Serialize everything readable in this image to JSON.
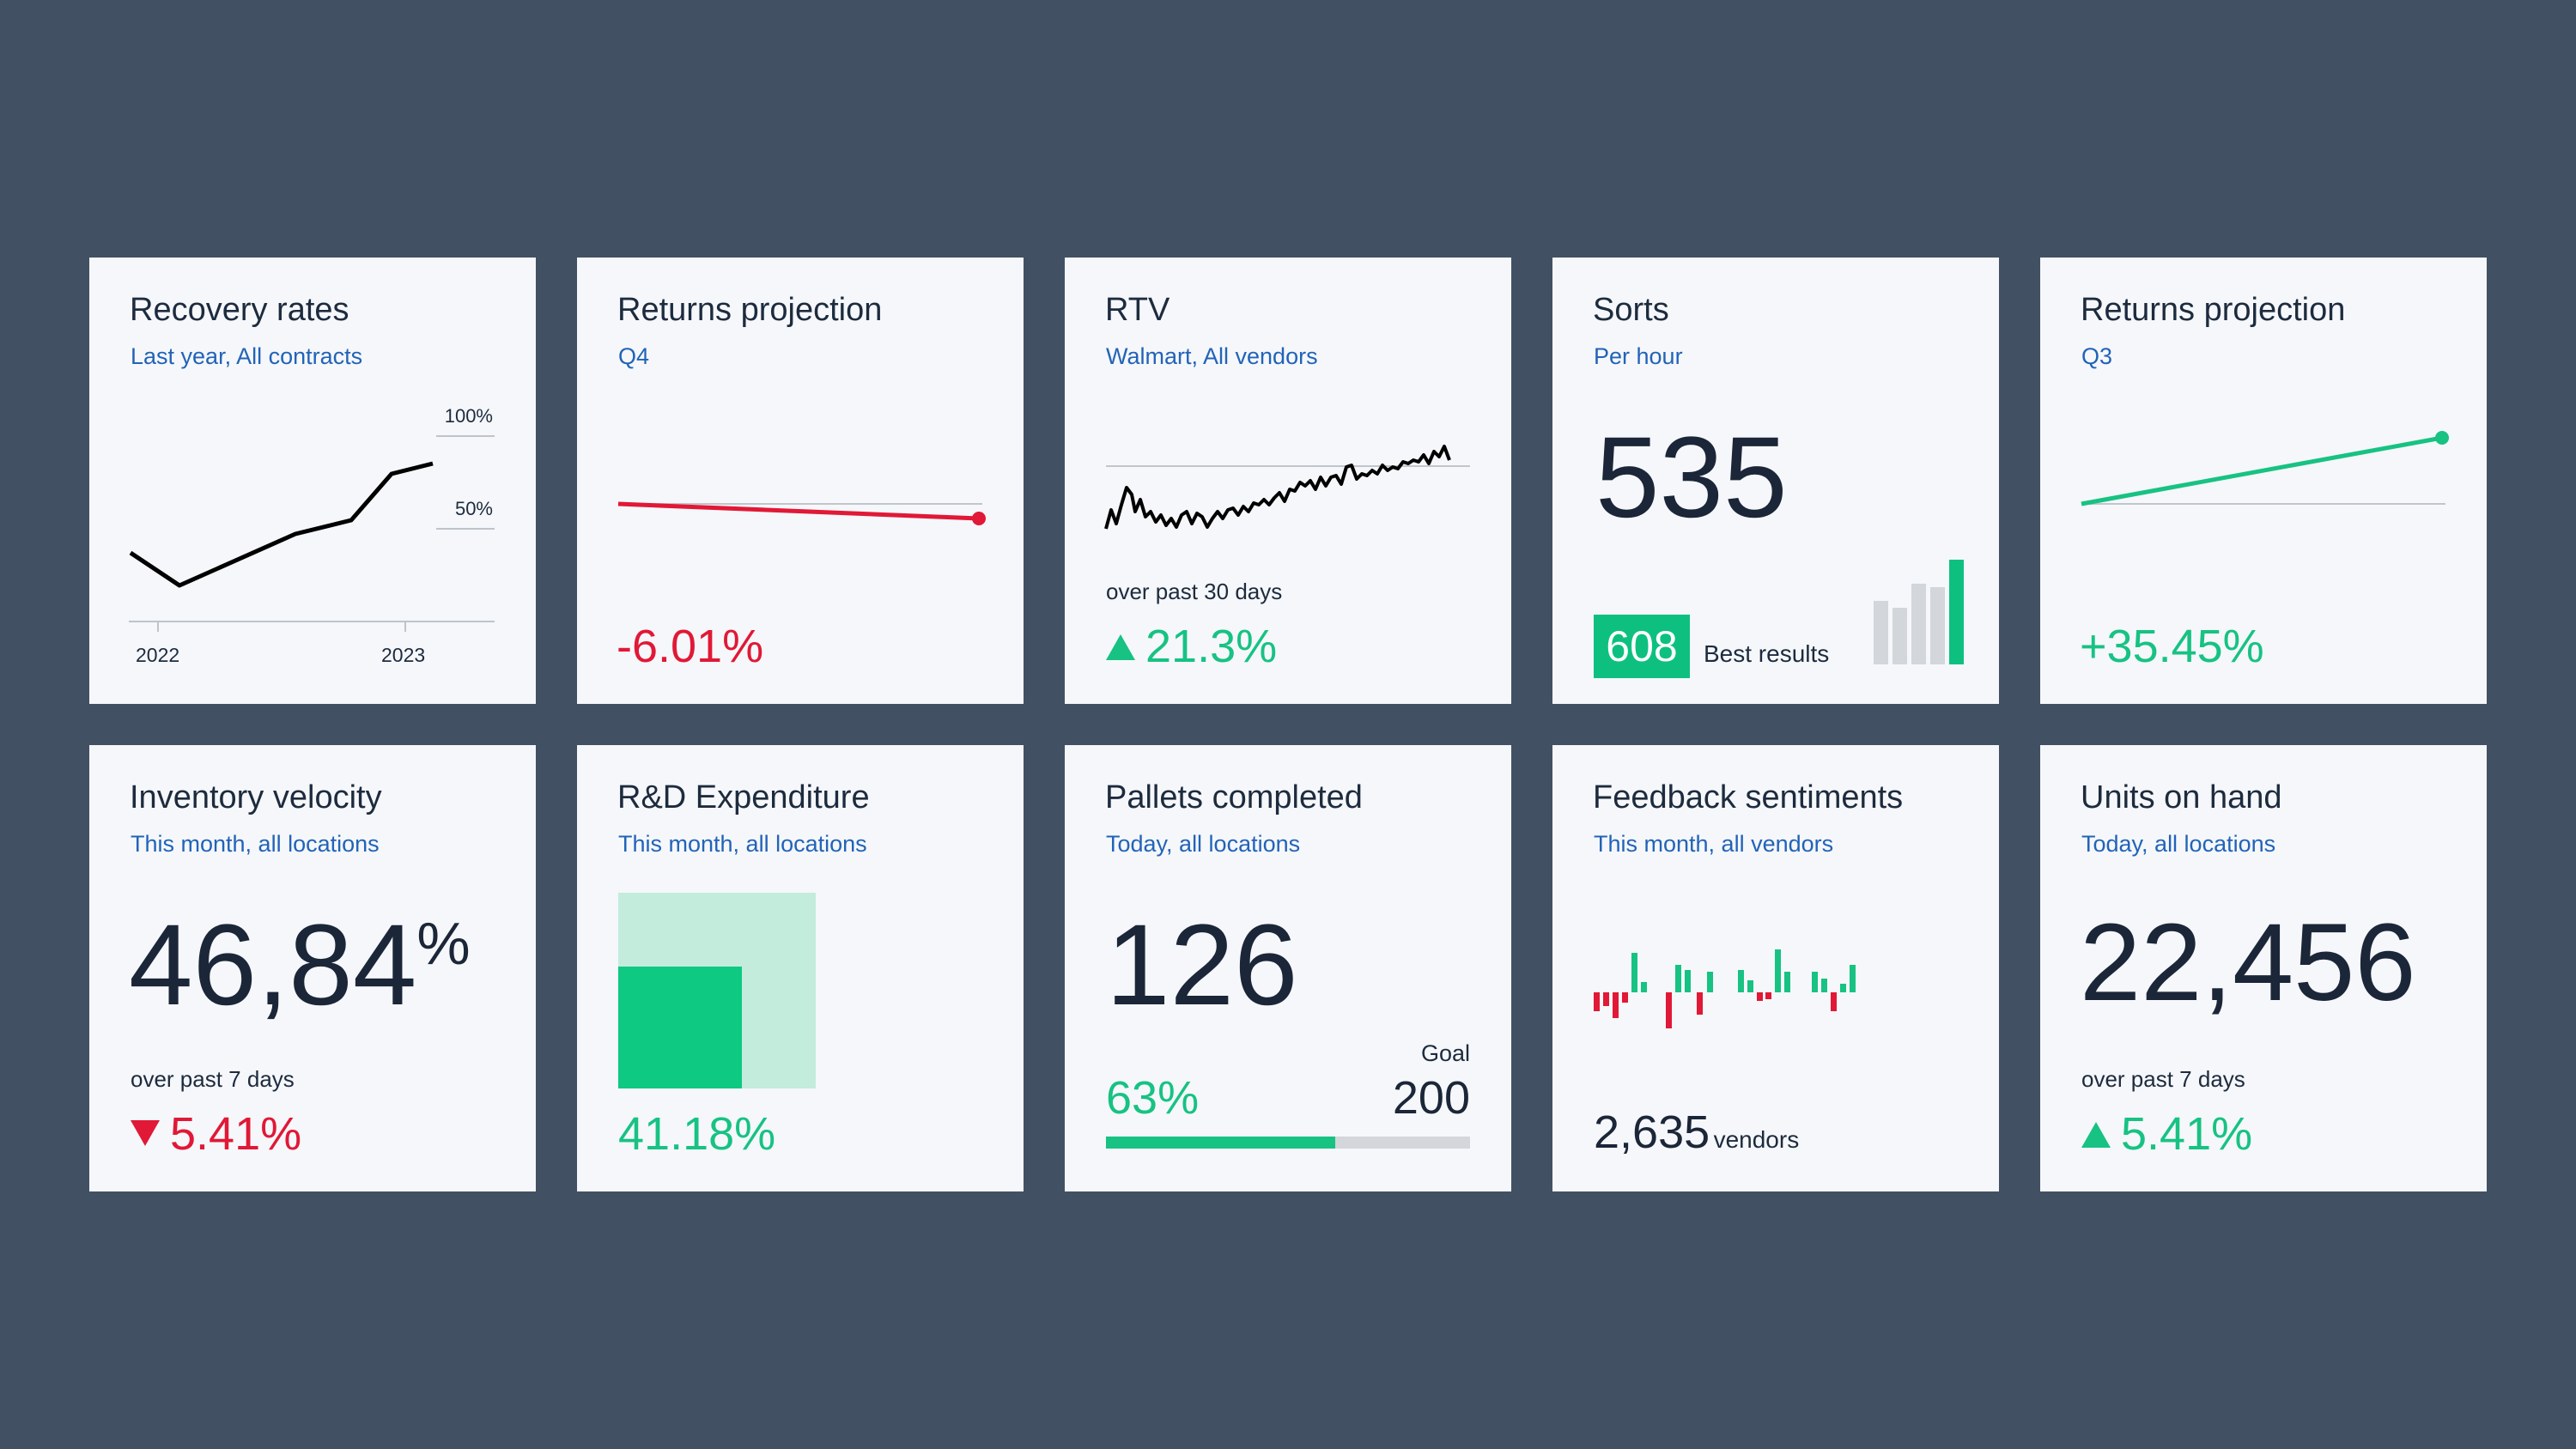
{
  "colors": {
    "background": "#425063",
    "card": "#f5f7fa",
    "accent_green": "#17c283",
    "accent_red": "#e11836",
    "subtitle_blue": "#2263b8"
  },
  "cards": {
    "recovery": {
      "title": "Recovery rates",
      "subtitle": "Last year, All contracts",
      "y_labels": [
        "100%",
        "50%"
      ],
      "x_labels": [
        "2022",
        "2023"
      ]
    },
    "returns_q4": {
      "title": "Returns projection",
      "subtitle": "Q4",
      "change": "-6.01%"
    },
    "rtv": {
      "title": "RTV",
      "subtitle": "Walmart, All vendors",
      "period": "over past 30 days",
      "change": "21.3%"
    },
    "sorts": {
      "title": "Sorts",
      "subtitle": "Per hour",
      "value": "535",
      "best_value": "608",
      "best_label": "Best results"
    },
    "returns_q3": {
      "title": "Returns projection",
      "subtitle": "Q3",
      "change": "+35.45%"
    },
    "inventory": {
      "title": "Inventory velocity",
      "subtitle": "This month, all locations",
      "value": "46,84",
      "unit": "%",
      "period": "over past 7 days",
      "change": "5.41%"
    },
    "rd": {
      "title": "R&D Expenditure",
      "subtitle": "This month, all locations",
      "change": "41.18%",
      "fill_fraction": 0.4118
    },
    "pallets": {
      "title": "Pallets completed",
      "subtitle": "Today, all locations",
      "value": "126",
      "goal_label": "Goal",
      "goal_value": "200",
      "progress_label": "63%",
      "progress_fraction": 0.63
    },
    "feedback": {
      "title": "Feedback sentiments",
      "subtitle": "This month, all vendors",
      "count": "2,635",
      "count_label": "vendors"
    },
    "units": {
      "title": "Units on hand",
      "subtitle": "Today, all locations",
      "value": "22,456",
      "period": "over past 7 days",
      "change": "5.41%"
    }
  }
}
